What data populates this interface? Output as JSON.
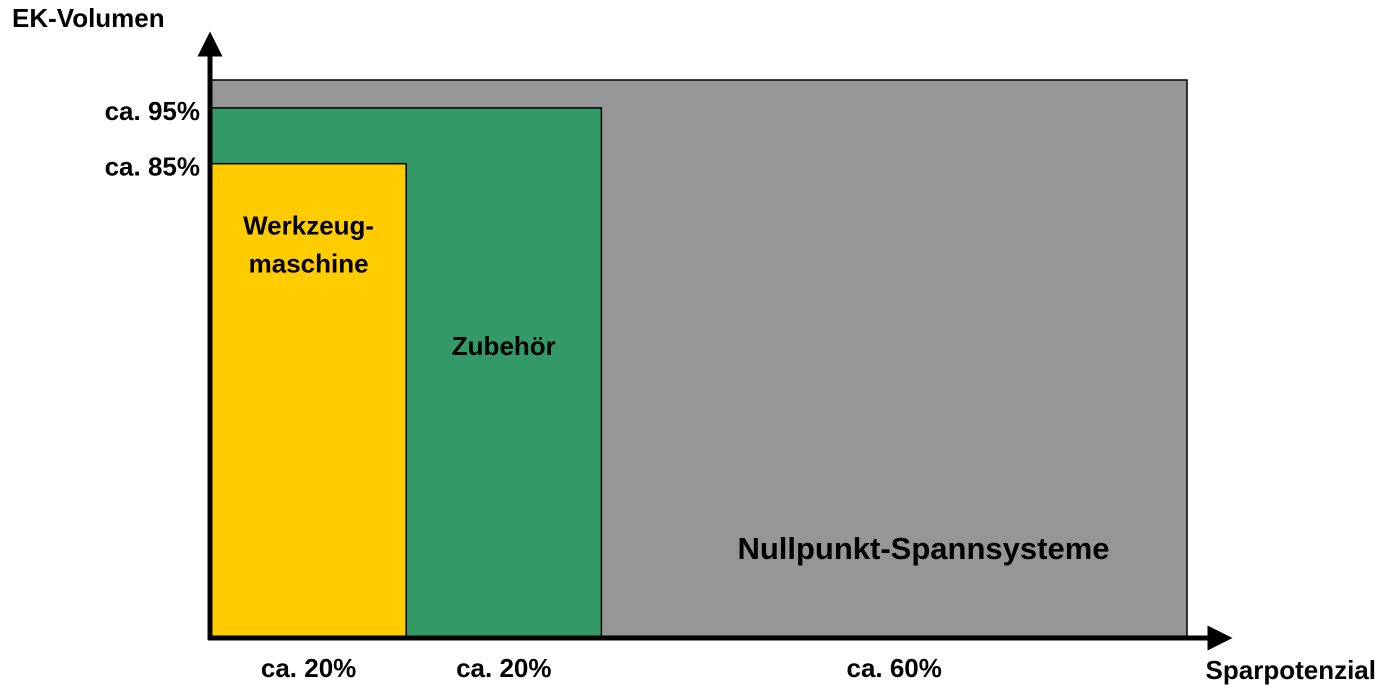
{
  "chart_data": {
    "type": "nested-area",
    "ylabel": "EK-Volumen",
    "xlabel": "Sparpotenzial",
    "xlim": [
      0,
      100
    ],
    "ylim": [
      0,
      100
    ],
    "series": [
      {
        "name": [
          "Nullpunkt-Spannsysteme"
        ],
        "color": "#969696",
        "share": 60,
        "share_label": "ca. 60%",
        "volume": 100
      },
      {
        "name": [
          "Zubehör"
        ],
        "color": "#339966",
        "share": 20,
        "share_label": "ca. 20%",
        "volume": 95,
        "volume_label": "ca. 95%"
      },
      {
        "name": [
          "Werkzeug-",
          "maschine"
        ],
        "color": "#ffcc00",
        "share": 20,
        "share_label": "ca. 20%",
        "volume": 85,
        "volume_label": "ca. 85%"
      }
    ]
  }
}
